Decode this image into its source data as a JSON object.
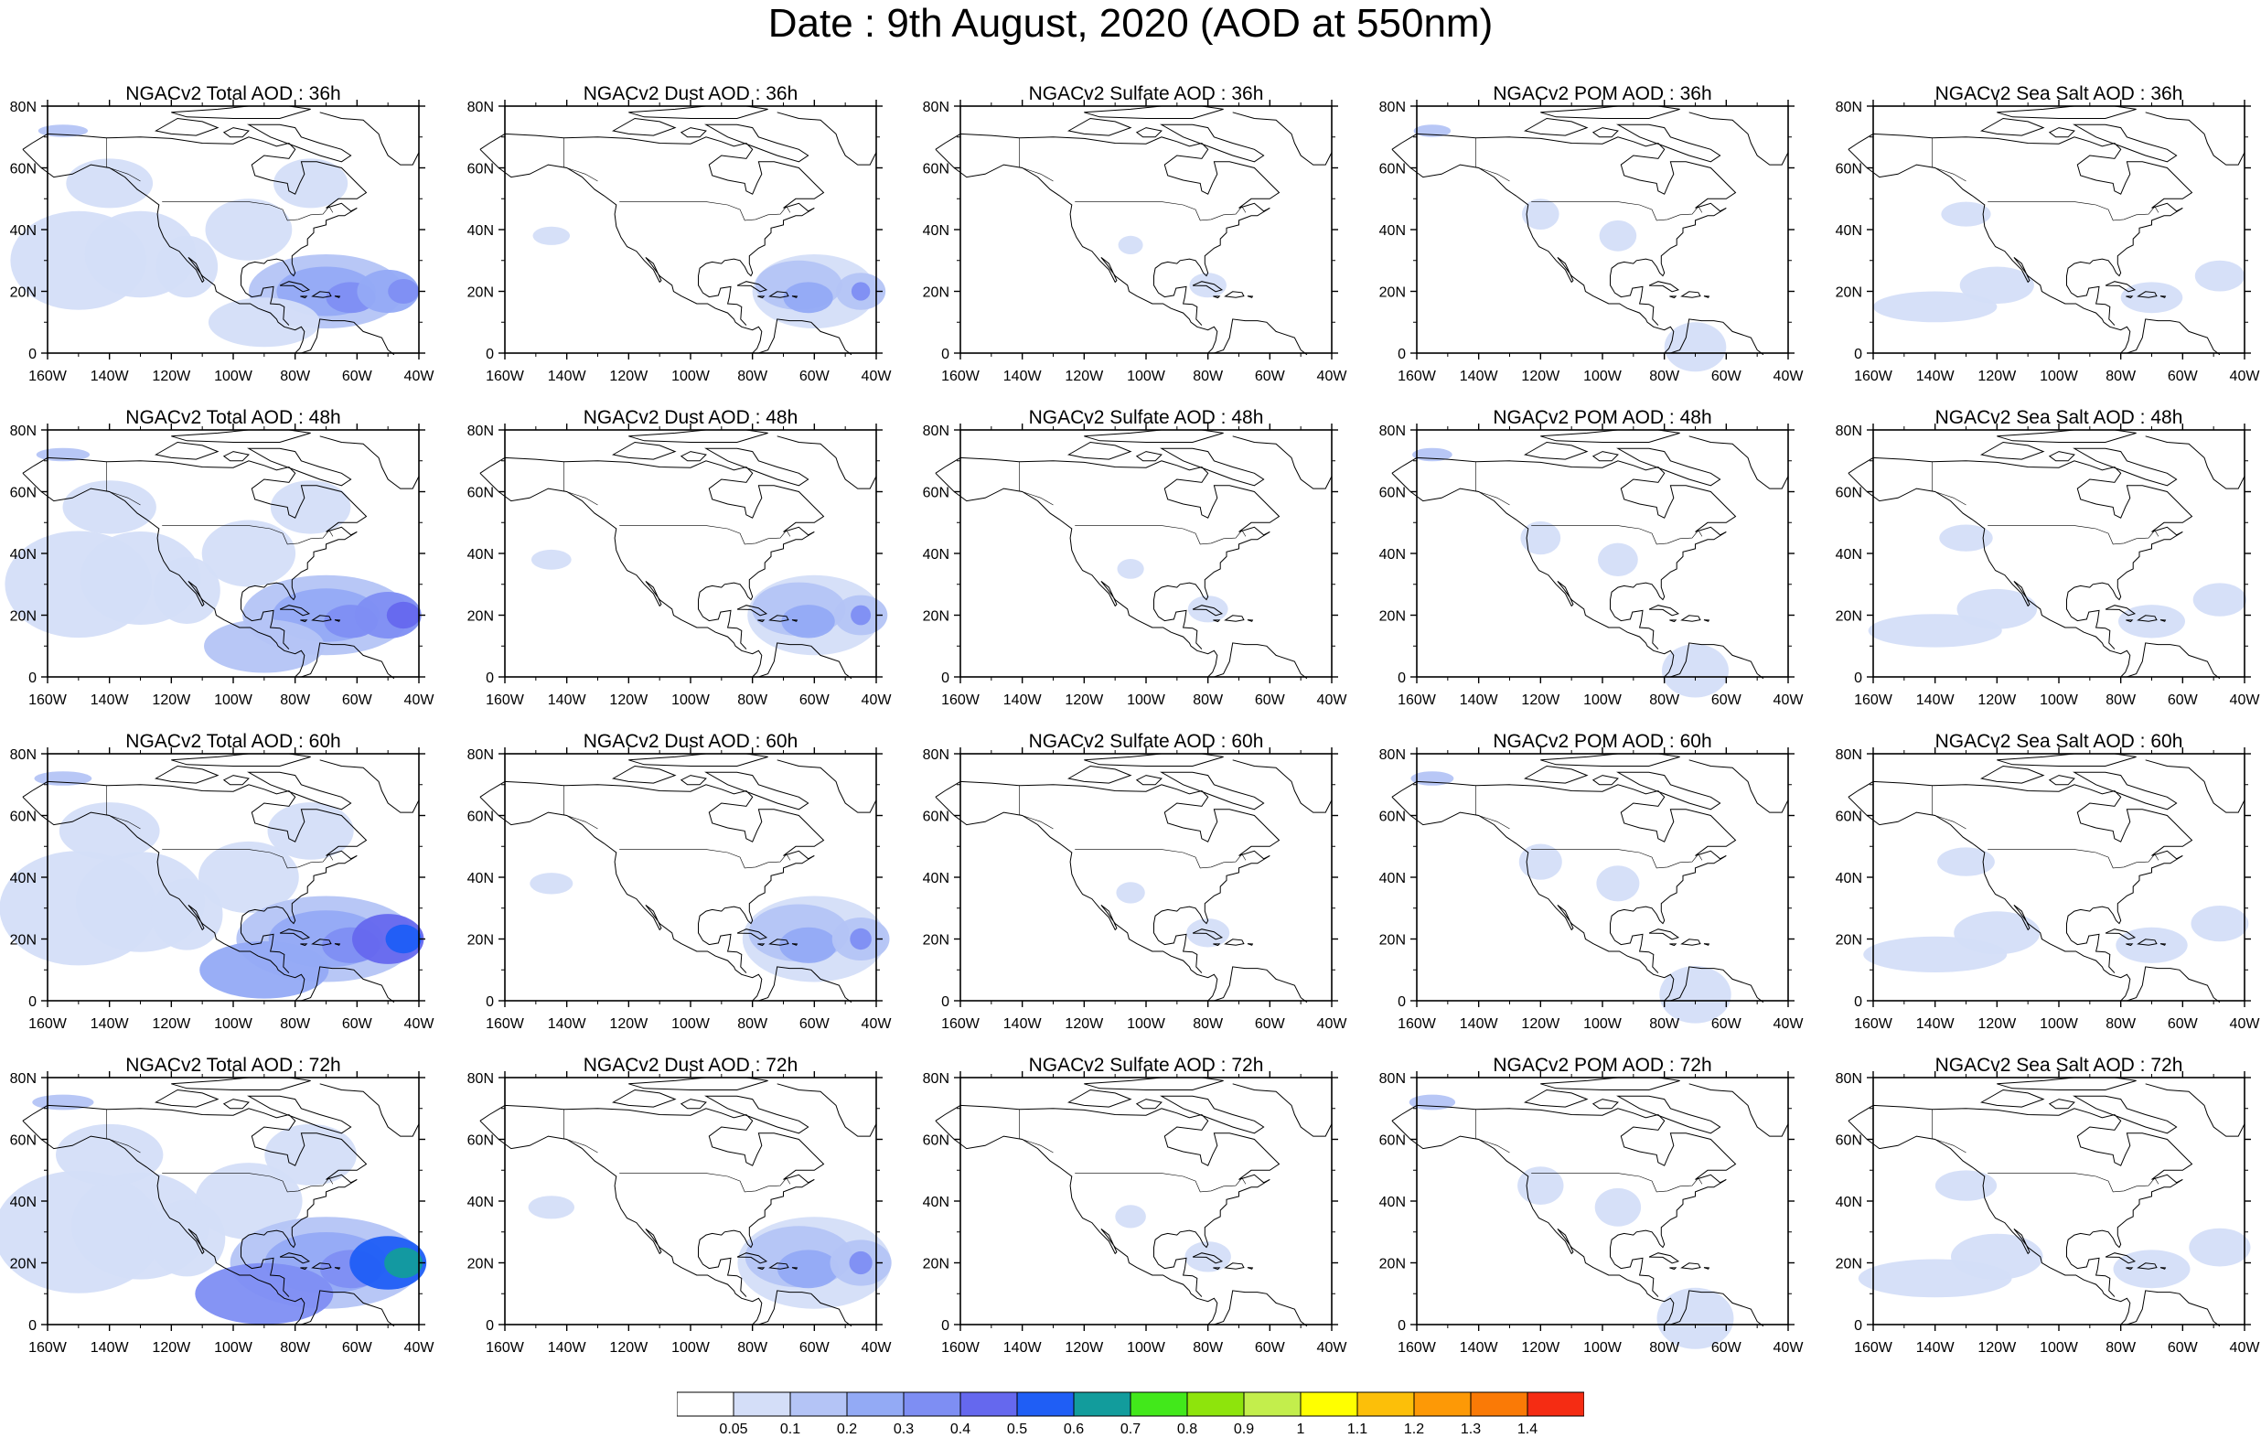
{
  "title": "Date : 9th August, 2020 (AOD at 550nm)",
  "map": {
    "lon_range": [
      -160,
      -40
    ],
    "lat_range": [
      0,
      80
    ],
    "lon_ticks": [
      "160W",
      "140W",
      "120W",
      "100W",
      "80W",
      "60W",
      "40W"
    ],
    "lat_ticks": [
      "0",
      "20N",
      "40N",
      "60N",
      "80N"
    ]
  },
  "panels": [
    [
      {
        "title": "NGACv2 Total AOD : 36h",
        "species": "total",
        "lead_hours": 36
      },
      {
        "title": "NGACv2 Dust AOD : 36h",
        "species": "dust",
        "lead_hours": 36
      },
      {
        "title": "NGACv2 Sulfate AOD : 36h",
        "species": "sulfate",
        "lead_hours": 36
      },
      {
        "title": "NGACv2 POM AOD : 36h",
        "species": "pom",
        "lead_hours": 36
      },
      {
        "title": "NGACv2 Sea Salt AOD : 36h",
        "species": "seasalt",
        "lead_hours": 36
      }
    ],
    [
      {
        "title": "NGACv2 Total AOD : 48h",
        "species": "total",
        "lead_hours": 48
      },
      {
        "title": "NGACv2 Dust AOD : 48h",
        "species": "dust",
        "lead_hours": 48
      },
      {
        "title": "NGACv2 Sulfate AOD : 48h",
        "species": "sulfate",
        "lead_hours": 48
      },
      {
        "title": "NGACv2 POM AOD : 48h",
        "species": "pom",
        "lead_hours": 48
      },
      {
        "title": "NGACv2 Sea Salt AOD : 48h",
        "species": "seasalt",
        "lead_hours": 48
      }
    ],
    [
      {
        "title": "NGACv2 Total AOD : 60h",
        "species": "total",
        "lead_hours": 60
      },
      {
        "title": "NGACv2 Dust AOD : 60h",
        "species": "dust",
        "lead_hours": 60
      },
      {
        "title": "NGACv2 Sulfate AOD : 60h",
        "species": "sulfate",
        "lead_hours": 60
      },
      {
        "title": "NGACv2 POM AOD : 60h",
        "species": "pom",
        "lead_hours": 60
      },
      {
        "title": "NGACv2 Sea Salt AOD : 60h",
        "species": "seasalt",
        "lead_hours": 60
      }
    ],
    [
      {
        "title": "NGACv2 Total AOD : 72h",
        "species": "total",
        "lead_hours": 72
      },
      {
        "title": "NGACv2 Dust AOD : 72h",
        "species": "dust",
        "lead_hours": 72
      },
      {
        "title": "NGACv2 Sulfate AOD : 72h",
        "species": "sulfate",
        "lead_hours": 72
      },
      {
        "title": "NGACv2 POM AOD : 72h",
        "species": "pom",
        "lead_hours": 72
      },
      {
        "title": "NGACv2 Sea Salt  AOD : 72h",
        "species": "seasalt",
        "lead_hours": 72
      }
    ]
  ],
  "colorbar": {
    "labels": [
      "0.05",
      "0.1",
      "0.2",
      "0.3",
      "0.4",
      "0.5",
      "0.6",
      "0.7",
      "0.8",
      "0.9",
      "1",
      "1.1",
      "1.2",
      "1.3",
      "1.4"
    ],
    "colors": [
      "#ffffff",
      "#d4def8",
      "#b4c4f6",
      "#93aaf5",
      "#7e8ef3",
      "#6568ee",
      "#1f5ef5",
      "#129c9c",
      "#42e81b",
      "#8ee40c",
      "#c3ee4c",
      "#ffff00",
      "#fcbf09",
      "#fd9906",
      "#fa7a06",
      "#f52c13"
    ]
  }
}
